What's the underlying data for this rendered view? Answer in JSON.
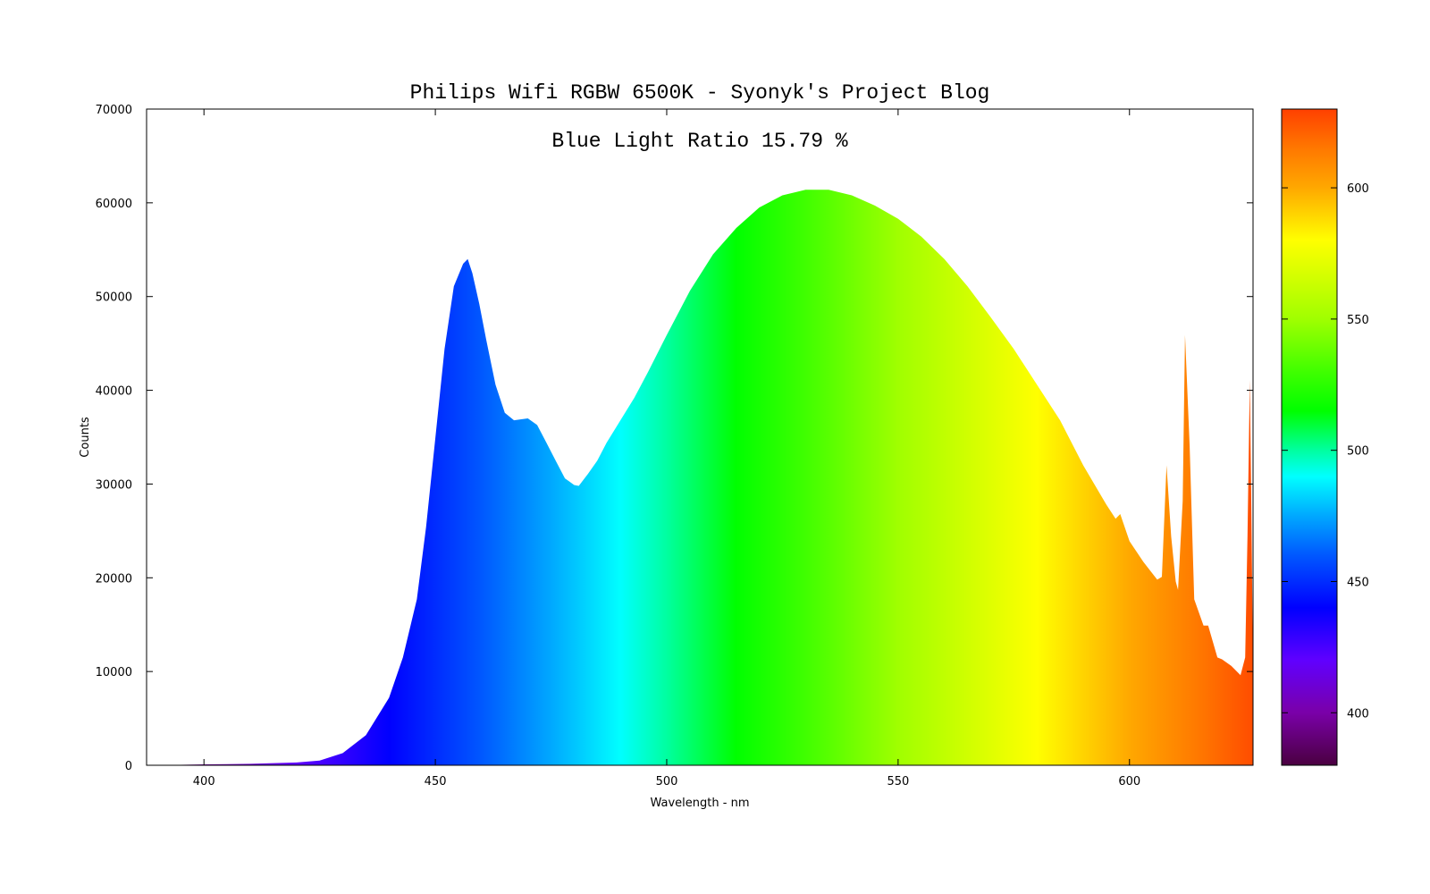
{
  "chart_data": {
    "type": "area",
    "title": "Philips Wifi RGBW 6500K - Syonyk's Project Blog",
    "annotation": "Blue Light Ratio 15.79 %",
    "xlabel": "Wavelength - nm",
    "ylabel": "Counts",
    "xlim": [
      387.6,
      626.7
    ],
    "ylim": [
      0,
      70000
    ],
    "xticks": [
      400,
      450,
      500,
      550,
      600
    ],
    "yticks": [
      0,
      10000,
      20000,
      30000,
      40000,
      50000,
      60000,
      70000
    ],
    "grid": false,
    "fill": "colored by wavelength (colormap)",
    "colorbar": {
      "range": [
        380,
        630
      ],
      "ticks": [
        400,
        450,
        500,
        550,
        600
      ],
      "colormap": [
        {
          "nm": 380,
          "color": "#4a0040"
        },
        {
          "nm": 400,
          "color": "#7a00a8"
        },
        {
          "nm": 420,
          "color": "#6000ff"
        },
        {
          "nm": 440,
          "color": "#0000ff"
        },
        {
          "nm": 460,
          "color": "#0058ff"
        },
        {
          "nm": 475,
          "color": "#00a8ff"
        },
        {
          "nm": 490,
          "color": "#00ffff"
        },
        {
          "nm": 500,
          "color": "#00ffa0"
        },
        {
          "nm": 515,
          "color": "#00ff00"
        },
        {
          "nm": 530,
          "color": "#40ff00"
        },
        {
          "nm": 550,
          "color": "#a0ff00"
        },
        {
          "nm": 580,
          "color": "#ffff00"
        },
        {
          "nm": 600,
          "color": "#ffa800"
        },
        {
          "nm": 615,
          "color": "#ff7800"
        },
        {
          "nm": 630,
          "color": "#ff4000"
        }
      ]
    },
    "x": [
      390,
      400,
      410,
      420,
      425,
      430,
      435,
      440,
      443,
      446,
      448,
      450,
      452,
      454,
      456,
      457,
      458,
      459.5,
      461,
      463,
      465,
      467,
      470,
      472,
      474,
      476,
      478,
      480,
      481,
      483,
      485,
      487,
      490,
      493,
      496,
      500,
      505,
      510,
      515,
      520,
      525,
      530,
      535,
      540,
      545,
      550,
      555,
      560,
      565,
      570,
      575,
      580,
      585,
      590,
      595,
      597,
      598,
      600,
      603,
      606,
      607,
      608,
      609,
      610,
      610.5,
      611.5,
      612,
      613,
      614,
      616,
      617,
      619,
      620,
      622,
      624,
      625,
      625.5,
      626,
      626.3,
      626.7
    ],
    "y": [
      0,
      100,
      150,
      300,
      500,
      1300,
      3200,
      7200,
      11500,
      17700,
      25400,
      34900,
      44400,
      51100,
      53500,
      54000,
      52500,
      49200,
      45400,
      40600,
      37600,
      36800,
      37000,
      36300,
      34400,
      32500,
      30600,
      29900,
      29800,
      31100,
      32500,
      34400,
      36800,
      39200,
      42000,
      45900,
      50600,
      54500,
      57300,
      59500,
      60800,
      61400,
      61400,
      60800,
      59700,
      58300,
      56400,
      54000,
      51100,
      47800,
      44400,
      40600,
      36800,
      32000,
      27800,
      26300,
      26800,
      23900,
      21700,
      19800,
      20100,
      32000,
      24400,
      19600,
      18700,
      28200,
      45900,
      34000,
      17700,
      14900,
      14900,
      11500,
      11300,
      10600,
      9600,
      11500,
      24400,
      41100,
      29200,
      10100
    ]
  }
}
